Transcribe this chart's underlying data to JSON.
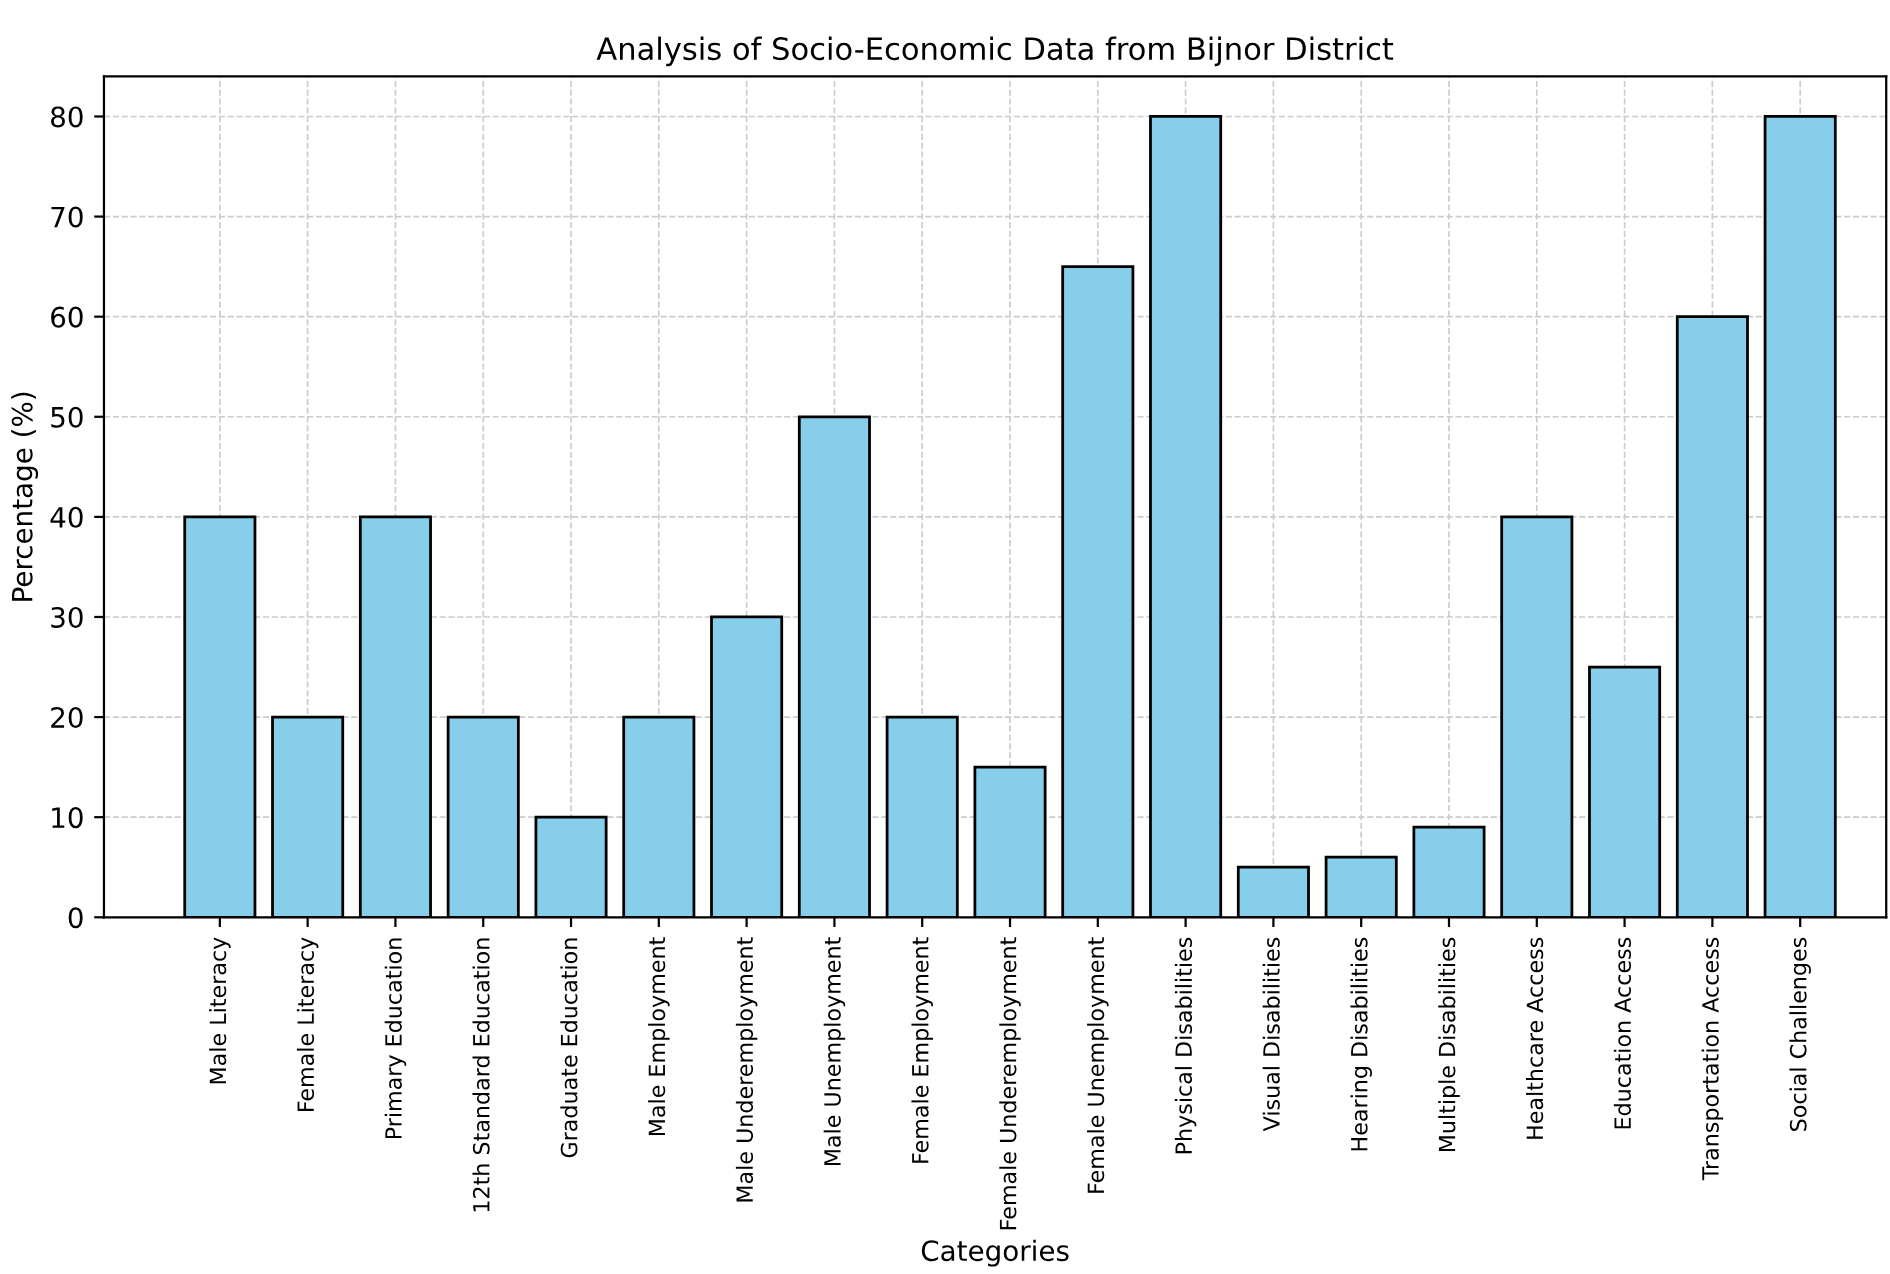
{
  "chart_data": {
    "type": "bar",
    "title": "Analysis of Socio-Economic Data from Bijnor District",
    "xlabel": "Categories",
    "ylabel": "Percentage (%)",
    "categories": [
      "Male Literacy",
      "Female Literacy",
      "Primary Education",
      "12th Standard Education",
      "Graduate Education",
      "Male Employment",
      "Male Underemployment",
      "Male Unemployment",
      "Female Employment",
      "Female Underemployment",
      "Female Unemployment",
      "Physical Disabilities",
      "Visual Disabilities",
      "Hearing Disabilities",
      "Multiple Disabilities",
      "Healthcare Access",
      "Education Access",
      "Transportation Access",
      "Social Challenges"
    ],
    "values": [
      40,
      20,
      40,
      20,
      10,
      20,
      30,
      50,
      20,
      15,
      65,
      80,
      5,
      6,
      9,
      40,
      25,
      60,
      80
    ],
    "color": "#87ceeb",
    "ylim": [
      0,
      84
    ],
    "yticks": [
      0,
      10,
      20,
      30,
      40,
      50,
      60,
      70,
      80
    ],
    "grid": true,
    "legend": false
  }
}
